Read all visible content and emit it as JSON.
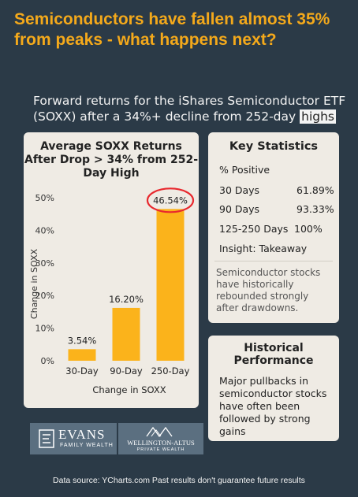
{
  "headline": "Semiconductors have fallen almost 35% from peaks - what happens next?",
  "subtitle": {
    "text": "Forward returns for the iShares Semiconductor ETF (SOXX) after a 34%+ decline from 252-day",
    "highlight": "highs"
  },
  "chart_data": {
    "type": "bar",
    "title": "Average SOXX Returns After Drop > 34% from 252-Day High",
    "categories": [
      "30-Day",
      "90-Day",
      "250-Day"
    ],
    "values": [
      3.54,
      16.2,
      46.54
    ],
    "data_labels": [
      "3.54%",
      "16.20%",
      "46.54%"
    ],
    "xlabel": "Change in SOXX",
    "ylabel": "Change in SOXX",
    "ylim": [
      0,
      50
    ],
    "yticks": [
      "0%",
      "10%",
      "20%",
      "30%",
      "40%",
      "50%"
    ],
    "bar_color": "#fbb31b",
    "highlight": {
      "category": "250-Day",
      "style": "red circle",
      "color": "#e8282e"
    },
    "grid": false
  },
  "key_stats": {
    "title": "Key Statistics",
    "header": "% Positive",
    "rows": [
      {
        "label": "30 Days",
        "value": "61.89%"
      },
      {
        "label": "90 Days",
        "value": "93.33%"
      },
      {
        "label": "125-250 Days",
        "value": "100%"
      }
    ],
    "insight": "Insight: Takeaway",
    "note": "Semiconductor stocks have historically rebounded strongly after drawdowns."
  },
  "historical": {
    "title": "Historical Performance",
    "text": "Major pullbacks in semiconductor stocks have often been followed by strong gains"
  },
  "logos": {
    "evans_main": "EVANS",
    "evans_sub": "FAMILY WEALTH",
    "wa_main": "WELLINGTON-ALTUS",
    "wa_sub": "PRIVATE WEALTH"
  },
  "footer": "Data source: YCharts.com Past results don't guarantee future results",
  "colors": {
    "background": "#2b3a47",
    "accent": "#f4a91b",
    "card": "#efebe4"
  }
}
